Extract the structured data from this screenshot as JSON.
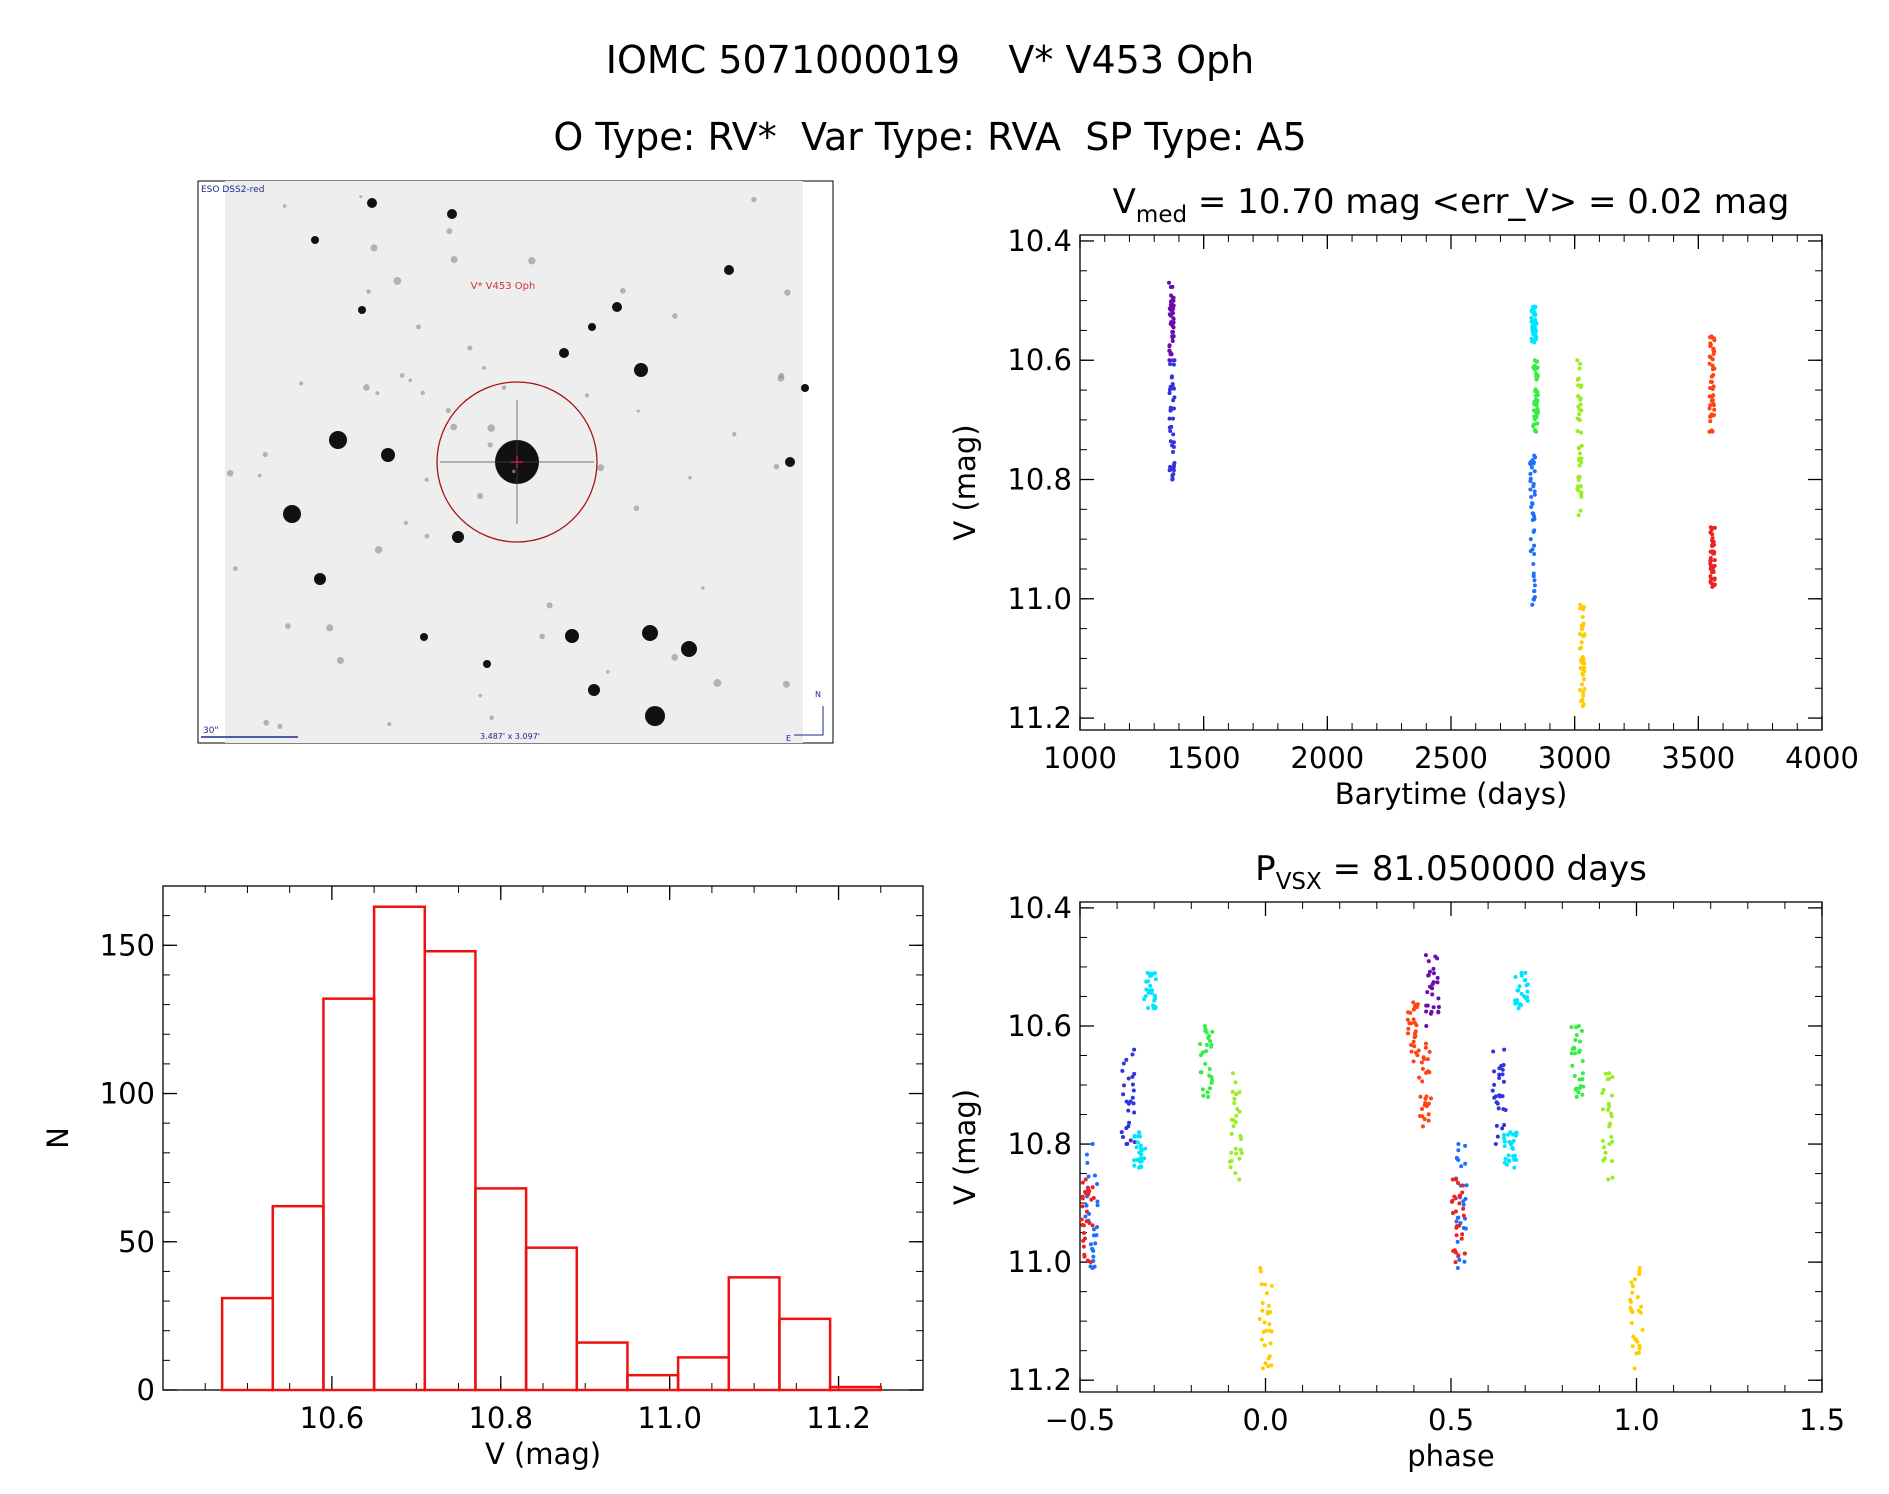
{
  "header": {
    "title": "IOMC 5071000019    V* V453 Oph",
    "subtitle": "O Type: RV*  Var Type: RVA  SP Type: A5"
  },
  "finder": {
    "survey_label": "ESO DSS2-red",
    "target_label": "V* V453 Oph",
    "scale_label": "30\"",
    "fov_label": "3.487' x 3.097'",
    "north_label": "N",
    "east_label": "E"
  },
  "chart_data": [
    {
      "id": "light_curve",
      "type": "scatter",
      "title_main": "V",
      "title_sub": "med",
      "title_rest": " = 10.70 mag <err_V> = 0.02 mag",
      "xlabel": "Barytime (days)",
      "ylabel": "V (mag)",
      "xlim": [
        1000,
        4000
      ],
      "ylim": [
        11.22,
        10.39
      ],
      "xticks": [
        1000,
        1500,
        2000,
        2500,
        3000,
        3500,
        4000
      ],
      "yticks": [
        10.4,
        10.6,
        10.8,
        11.0,
        11.2
      ],
      "series": [
        {
          "color": "#6a0dad",
          "x": 1370,
          "ymin": 10.47,
          "ymax": 10.6
        },
        {
          "color": "#3333dd",
          "x": 1372,
          "ymin": 10.6,
          "ymax": 10.8
        },
        {
          "color": "#00e5ff",
          "x": 2835,
          "ymin": 10.51,
          "ymax": 10.57
        },
        {
          "color": "#33ee44",
          "x": 2842,
          "ymin": 10.6,
          "ymax": 10.72
        },
        {
          "color": "#1f6fff",
          "x": 2830,
          "ymin": 10.76,
          "ymax": 11.01
        },
        {
          "color": "#99ee22",
          "x": 3020,
          "ymin": 10.6,
          "ymax": 10.86
        },
        {
          "color": "#ffcc00",
          "x": 3030,
          "ymin": 11.01,
          "ymax": 11.18
        },
        {
          "color": "#ff4411",
          "x": 3555,
          "ymin": 10.56,
          "ymax": 10.72
        },
        {
          "color": "#ee2222",
          "x": 3558,
          "ymin": 10.88,
          "ymax": 10.98
        }
      ]
    },
    {
      "id": "histogram",
      "type": "bar",
      "xlabel": "V (mag)",
      "ylabel": "N",
      "xlim": [
        10.4,
        11.3
      ],
      "ylim": [
        0,
        170
      ],
      "xticks": [
        10.6,
        10.8,
        11.0,
        11.2
      ],
      "yticks": [
        0,
        50,
        100,
        150
      ],
      "bin_edges": [
        10.47,
        10.53,
        10.59,
        10.65,
        10.71,
        10.77,
        10.83,
        10.89,
        10.95,
        11.01,
        11.07,
        11.13,
        11.19,
        11.25
      ],
      "values": [
        31,
        62,
        132,
        163,
        148,
        68,
        48,
        16,
        5,
        11,
        38,
        24,
        1
      ]
    },
    {
      "id": "phased",
      "type": "scatter",
      "title_main": "P",
      "title_sub": "VSX",
      "title_rest": " = 81.050000 days",
      "xlabel": "phase",
      "ylabel": "V (mag)",
      "xlim": [
        -0.5,
        1.5
      ],
      "ylim": [
        11.22,
        10.39
      ],
      "xticks": [
        -0.5,
        0.0,
        0.5,
        1.0,
        1.5
      ],
      "xtick_labels": [
        "−0.5",
        "0.0",
        "0.5",
        "1.0",
        "1.5"
      ],
      "yticks": [
        10.4,
        10.6,
        10.8,
        11.0,
        11.2
      ],
      "series": [
        {
          "color": "#6a0dad",
          "phase": 0.45,
          "ymin": 10.48,
          "ymax": 10.6
        },
        {
          "color": "#3333dd",
          "phase": 0.63,
          "ymin": 10.64,
          "ymax": 10.8
        },
        {
          "color": "#00e5ff",
          "phase": 0.69,
          "ymin": 10.51,
          "ymax": 10.57
        },
        {
          "color": "#00e5ff",
          "phase": 0.66,
          "ymin": 10.78,
          "ymax": 10.84
        },
        {
          "color": "#33ee44",
          "phase": 0.84,
          "ymin": 10.6,
          "ymax": 10.72
        },
        {
          "color": "#99ee22",
          "phase": 0.92,
          "ymin": 10.68,
          "ymax": 10.86
        },
        {
          "color": "#ffcc00",
          "phase": 1.0,
          "ymin": 11.01,
          "ymax": 11.18
        },
        {
          "color": "#ff4411",
          "phase": 0.4,
          "ymin": 10.56,
          "ymax": 10.66
        },
        {
          "color": "#ff4411",
          "phase": 0.43,
          "ymin": 10.63,
          "ymax": 10.77
        },
        {
          "color": "#1f6fff",
          "phase": 0.53,
          "ymin": 10.8,
          "ymax": 11.01
        },
        {
          "color": "#ee2222",
          "phase": 0.52,
          "ymin": 10.86,
          "ymax": 11.0
        }
      ]
    }
  ]
}
